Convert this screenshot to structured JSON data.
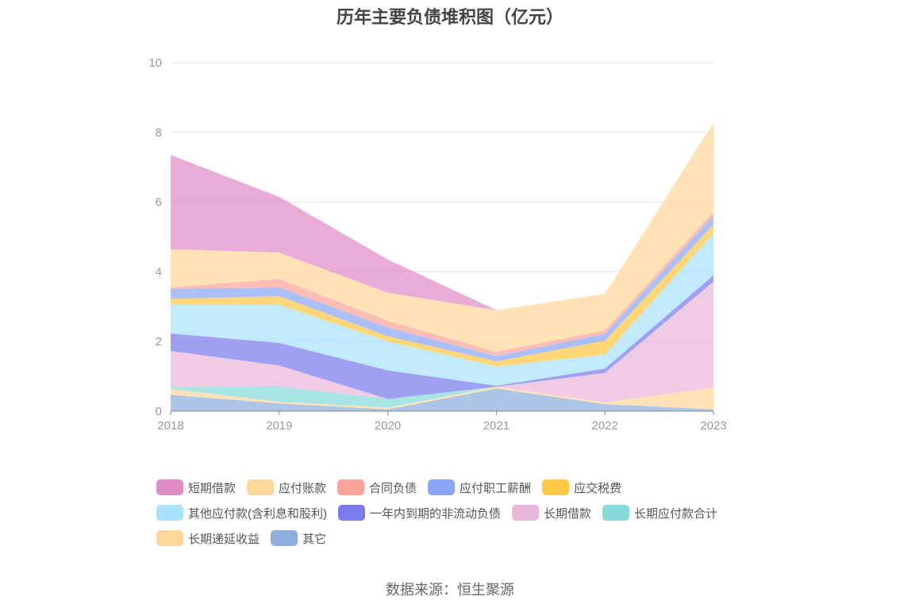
{
  "chart_data": {
    "type": "area",
    "stacked": true,
    "title": "历年主要负债堆积图（亿元）",
    "x": [
      "2018",
      "2019",
      "2020",
      "2021",
      "2022",
      "2023"
    ],
    "y_ticks": [
      "0",
      "2",
      "4",
      "6",
      "8",
      "10"
    ],
    "ylim": [
      0,
      10
    ],
    "grid": true,
    "legend_position": "bottom",
    "series": [
      {
        "name": "其它",
        "color": "#8eaedc",
        "values": [
          0.47,
          0.22,
          0.05,
          0.65,
          0.2,
          0.05
        ]
      },
      {
        "name": "长期递延收益",
        "color": "#ffd79a",
        "values": [
          0.16,
          0.05,
          0.05,
          0.05,
          0.05,
          0.62
        ]
      },
      {
        "name": "长期应付款合计",
        "color": "#86dada",
        "values": [
          0.05,
          0.44,
          0.25,
          0.0,
          0.0,
          0.0
        ]
      },
      {
        "name": "长期借款",
        "color": "#e9b7d9",
        "values": [
          1.05,
          0.6,
          0.0,
          0.0,
          0.85,
          3.05
        ]
      },
      {
        "name": "一年内到期的非流动负债",
        "color": "#7b7bef",
        "values": [
          0.5,
          0.65,
          0.82,
          0.03,
          0.12,
          0.18
        ]
      },
      {
        "name": "其他应付款(含利息和股利)",
        "color": "#a9e2fb",
        "values": [
          0.82,
          1.09,
          0.83,
          0.55,
          0.4,
          1.2
        ]
      },
      {
        "name": "应交税费",
        "color": "#ffc844",
        "values": [
          0.17,
          0.25,
          0.15,
          0.15,
          0.4,
          0.25
        ]
      },
      {
        "name": "应付职工薪酬",
        "color": "#8aa6f8",
        "values": [
          0.29,
          0.25,
          0.25,
          0.15,
          0.2,
          0.25
        ]
      },
      {
        "name": "合同负债",
        "color": "#f9a39a",
        "values": [
          0.04,
          0.25,
          0.2,
          0.12,
          0.1,
          0.12
        ]
      },
      {
        "name": "应付账款",
        "color": "#ffd79a",
        "values": [
          1.1,
          0.75,
          0.8,
          1.2,
          1.05,
          2.56
        ]
      },
      {
        "name": "短期借款",
        "color": "#df8cc6",
        "values": [
          2.7,
          1.6,
          0.95,
          0.0,
          0.0,
          0.0
        ]
      }
    ]
  },
  "legend": [
    [
      {
        "label": "短期借款",
        "color": "#df8cc6"
      },
      {
        "label": "应付账款",
        "color": "#ffd79a"
      },
      {
        "label": "合同负债",
        "color": "#f9a39a"
      },
      {
        "label": "应付职工薪酬",
        "color": "#8aa6f8"
      },
      {
        "label": "应交税费",
        "color": "#ffc844"
      }
    ],
    [
      {
        "label": "其他应付款(含利息和股利)",
        "color": "#a9e2fb"
      },
      {
        "label": "一年内到期的非流动负债",
        "color": "#7b7bef"
      },
      {
        "label": "长期借款",
        "color": "#e9b7d9"
      },
      {
        "label": "长期应付款合计",
        "color": "#86dada"
      }
    ],
    [
      {
        "label": "长期递延收益",
        "color": "#ffd79a"
      },
      {
        "label": "其它",
        "color": "#8eaedc"
      }
    ]
  ],
  "source": "数据来源：恒生聚源"
}
